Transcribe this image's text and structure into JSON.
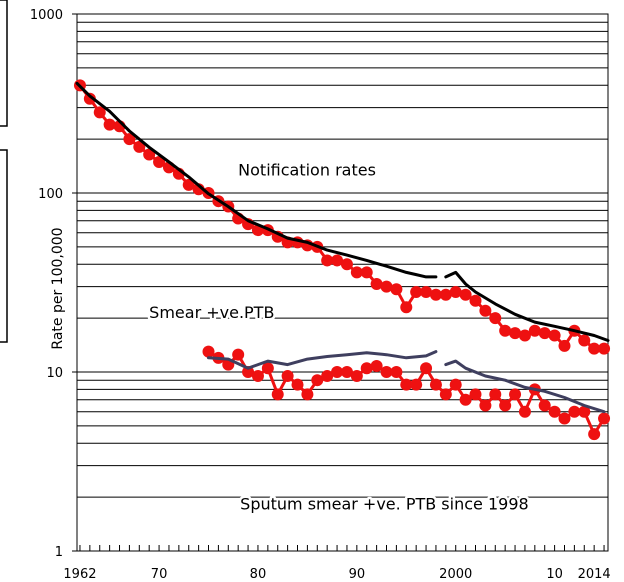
{
  "chart_data": {
    "type": "line",
    "ylabel": "Rate per 100,000",
    "yscale": "log",
    "ylim": [
      1,
      1000
    ],
    "xlim": [
      1961.7,
      2015.4
    ],
    "y_tick_labels": [
      {
        "value": 1,
        "label": "1"
      },
      {
        "value": 10,
        "label": "10"
      },
      {
        "value": 100,
        "label": "100"
      },
      {
        "value": 1000,
        "label": "1000"
      }
    ],
    "x_tick_labels": [
      {
        "value": 1962,
        "label": "1962"
      },
      {
        "value": 1970,
        "label": "70"
      },
      {
        "value": 1980,
        "label": "80"
      },
      {
        "value": 1990,
        "label": "90"
      },
      {
        "value": 2000,
        "label": "2000"
      },
      {
        "value": 2010,
        "label": "10"
      },
      {
        "value": 2014,
        "label": "2014"
      }
    ],
    "grid": "horizontal",
    "annotations": [
      {
        "text": "Notification rates",
        "x": 1978,
        "y": 125
      },
      {
        "text": "Smear +ve.PTB",
        "x": 1969,
        "y": 20
      },
      {
        "text": "Sputum smear +ve. PTB since 1998",
        "x": 1978.2,
        "y": 1.7
      }
    ],
    "series": [
      {
        "role": "notification-rate-points",
        "style": "markers",
        "color": "#ee1111",
        "x": [
          1962,
          1963,
          1964,
          1965,
          1966,
          1967,
          1968,
          1969,
          1970,
          1971,
          1972,
          1973,
          1974,
          1975,
          1976,
          1977,
          1978,
          1979,
          1980,
          1981,
          1982,
          1983,
          1984,
          1985,
          1986,
          1987,
          1988,
          1989,
          1990,
          1991,
          1992,
          1993,
          1994,
          1995,
          1996,
          1997,
          1998,
          1999,
          2000,
          2001,
          2002,
          2003,
          2004,
          2005,
          2006,
          2007,
          2008,
          2009,
          2010,
          2011,
          2012,
          2013,
          2014,
          2015
        ],
        "y": [
          399,
          336,
          282,
          241,
          236,
          200,
          181,
          164,
          149,
          139,
          128,
          111,
          105,
          100,
          90,
          84,
          72,
          67,
          62,
          62,
          57,
          53,
          53,
          51,
          50,
          42,
          42,
          40,
          36,
          36,
          31,
          30,
          29,
          23,
          28,
          28,
          27,
          27,
          28,
          27,
          25,
          22,
          20,
          17,
          16.5,
          16,
          17,
          16.5,
          16,
          14,
          17,
          15,
          13.5,
          13.5
        ]
      },
      {
        "role": "notification-rate-trend",
        "style": "line",
        "color": "#000000",
        "x": [
          1961.7,
          1963,
          1965,
          1967,
          1969,
          1971,
          1973,
          1975,
          1977,
          1979,
          1981,
          1983,
          1985,
          1987,
          1989,
          1991,
          1993,
          1995,
          1996,
          1997,
          1998
        ],
        "y": [
          410,
          348,
          286,
          222,
          180,
          149,
          123,
          99,
          84,
          70,
          63,
          56,
          53,
          48,
          45,
          42,
          39,
          36,
          35,
          34,
          34
        ]
      },
      {
        "role": "notification-rate-trend-since-1998",
        "style": "line",
        "color": "#000000",
        "x": [
          1999,
          2000,
          2001,
          2002,
          2004,
          2006,
          2008,
          2010,
          2012,
          2014,
          2015.4
        ],
        "y": [
          34,
          36,
          31,
          28,
          24,
          21,
          19,
          18,
          17,
          16,
          15
        ]
      },
      {
        "role": "smear-positive-points",
        "style": "markers",
        "color": "#ee1111",
        "x": [
          1975,
          1976,
          1977,
          1978,
          1979,
          1980,
          1981,
          1982,
          1983,
          1984,
          1985,
          1986,
          1987,
          1988,
          1989,
          1990,
          1991,
          1992,
          1993,
          1994,
          1995,
          1996,
          1997,
          1998,
          1999,
          2000,
          2001,
          2002,
          2003,
          2004,
          2005,
          2006,
          2007,
          2008,
          2009,
          2010,
          2011,
          2012,
          2013,
          2014,
          2015
        ],
        "y": [
          13,
          12,
          11,
          12.5,
          10,
          9.5,
          10.5,
          7.5,
          9.5,
          8.5,
          7.5,
          9,
          9.5,
          10,
          10,
          9.5,
          10.5,
          10.8,
          10,
          10,
          8.5,
          8.5,
          10.5,
          8.5,
          7.5,
          8.5,
          7,
          7.5,
          6.5,
          7.5,
          6.5,
          7.5,
          6,
          8,
          6.5,
          6,
          5.5,
          6,
          6,
          4.5,
          5.5
        ]
      },
      {
        "role": "smear-positive-line",
        "style": "line",
        "color": "#3f3f5f",
        "x": [
          1975,
          1977,
          1979,
          1981,
          1983,
          1985,
          1987,
          1989,
          1991,
          1993,
          1995,
          1997,
          1998
        ],
        "y": [
          12,
          11.8,
          10.5,
          11.5,
          11,
          11.8,
          12.2,
          12.5,
          12.8,
          12.5,
          12,
          12.3,
          13
        ]
      },
      {
        "role": "smear-positive-line-since-1998",
        "style": "line",
        "color": "#3f3f5f",
        "x": [
          1999,
          2000,
          2001,
          2003,
          2005,
          2007,
          2009,
          2011,
          2013,
          2015
        ],
        "y": [
          11,
          11.5,
          10.5,
          9.5,
          9,
          8.2,
          7.8,
          7.2,
          6.5,
          6
        ]
      }
    ]
  }
}
